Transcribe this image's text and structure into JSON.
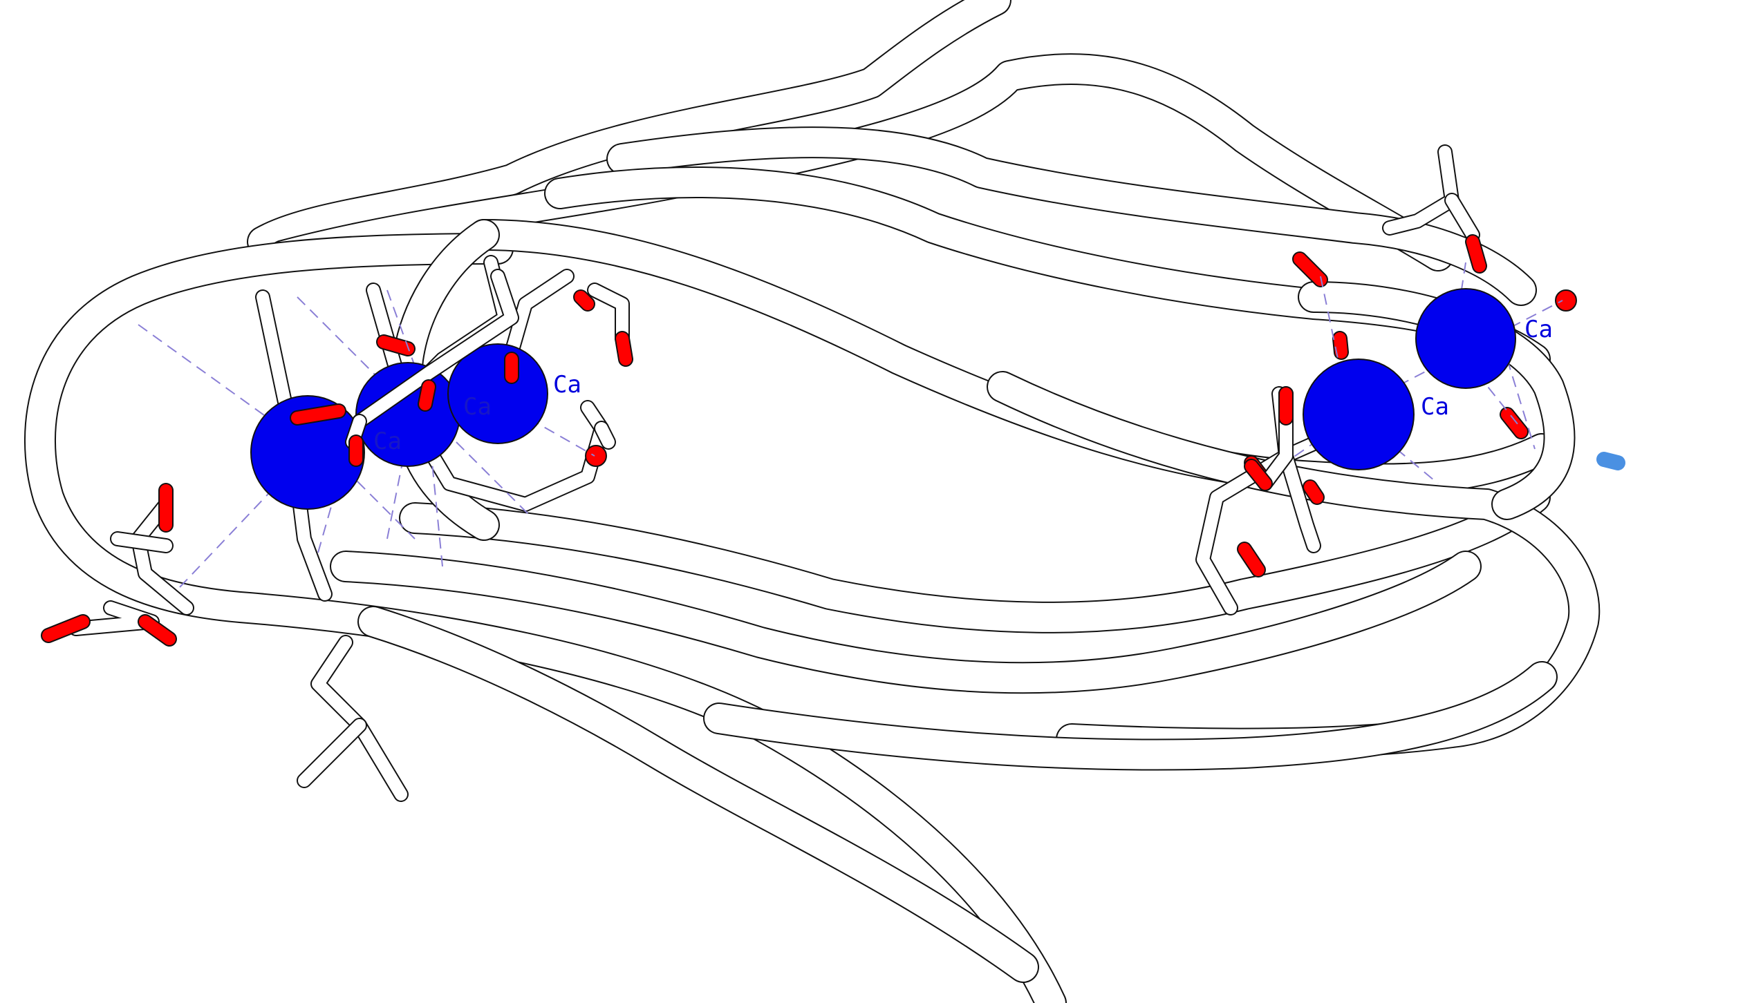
{
  "structure": {
    "ion_label": "Ca",
    "colors": {
      "background": "#ffffff",
      "ribbon": "#ffffff",
      "outline": "#111111",
      "calcium": "#0000ee",
      "oxygen": "#ff0000",
      "coordination_bond": "#8a7fd6",
      "nitrogen": "#4a90e2"
    }
  }
}
